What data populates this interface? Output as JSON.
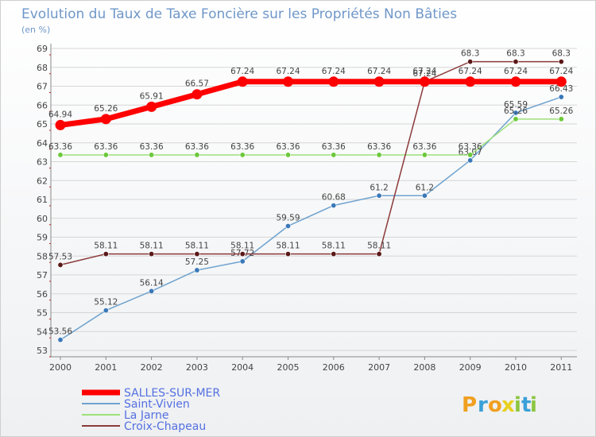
{
  "chart_data": {
    "type": "line",
    "title": "Evolution du Taux de Taxe Foncière sur les Propriétés Non Bâties",
    "subtitle": "(en %)",
    "xlabel": "",
    "ylabel": "",
    "categories": [
      "2000",
      "2001",
      "2002",
      "2003",
      "2004",
      "2005",
      "2006",
      "2007",
      "2008",
      "2009",
      "2010",
      "2011"
    ],
    "y_ticks": [
      "53",
      "54",
      "55",
      "56",
      "57",
      "58",
      "59",
      "60",
      "61",
      "62",
      "63",
      "64",
      "65",
      "66",
      "67",
      "68",
      "69"
    ],
    "ylim": [
      53,
      69
    ],
    "grid": "horizontal",
    "legend_position": "bottom-left",
    "series": [
      {
        "name": "SALLES-SUR-MER",
        "color": "#ff0000",
        "style": "thick",
        "values": [
          64.94,
          65.26,
          65.91,
          66.57,
          67.24,
          67.24,
          67.24,
          67.24,
          67.24,
          67.24,
          67.24,
          67.24
        ],
        "labels": [
          "64.94",
          "65.26",
          "65.91",
          "66.57",
          "67.24",
          "67.24",
          "67.24",
          "67.24",
          "67.24",
          "67.24",
          "67.24",
          "67.24"
        ]
      },
      {
        "name": "Saint-Vivien",
        "color": "#6fa3cf",
        "marker_color": "#3a78b8",
        "style": "thin",
        "values": [
          53.56,
          55.12,
          56.14,
          57.25,
          57.72,
          59.59,
          60.68,
          61.2,
          61.2,
          63.07,
          65.59,
          66.43
        ],
        "labels": [
          "53.56",
          "55.12",
          "56.14",
          "57.25",
          "57.72",
          "59.59",
          "60.68",
          "61.2",
          "61.2",
          "63.07",
          "65.59",
          "66.43"
        ]
      },
      {
        "name": "La Jarne",
        "color": "#9de07a",
        "marker_color": "#6cc83a",
        "style": "thin",
        "values": [
          63.36,
          63.36,
          63.36,
          63.36,
          63.36,
          63.36,
          63.36,
          63.36,
          63.36,
          63.36,
          65.26,
          65.26
        ],
        "labels": [
          "63.36",
          "63.36",
          "63.36",
          "63.36",
          "63.36",
          "63.36",
          "63.36",
          "63.36",
          "63.36",
          "63.36",
          "65.26",
          "65.26"
        ]
      },
      {
        "name": "Croix-Chapeau",
        "color": "#8b3a3a",
        "marker_color": "#5a1818",
        "style": "thin",
        "values": [
          57.53,
          58.11,
          58.11,
          58.11,
          58.11,
          58.11,
          58.11,
          58.11,
          67.24,
          68.3,
          68.3,
          68.3
        ],
        "labels": [
          "57.53",
          "58.11",
          "58.11",
          "58.11",
          "58.11",
          "58.11",
          "58.11",
          "58.11",
          "67.24",
          "68.3",
          "68.3",
          "68.3"
        ]
      }
    ]
  },
  "logo": {
    "letters": [
      "P",
      "r",
      "o",
      "x",
      "i",
      "t",
      "i"
    ],
    "colors": [
      "#f0a020",
      "#3aa0d8",
      "#f0a020",
      "#e8d020",
      "#8cc63f",
      "#3aa0d8",
      "#8cc63f"
    ]
  }
}
